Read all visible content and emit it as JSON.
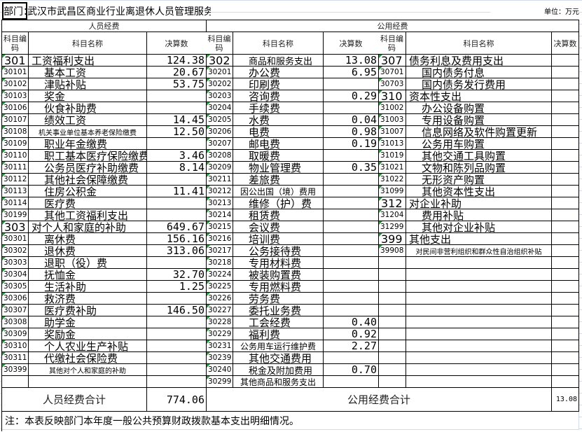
{
  "header": {
    "dept_label": "部门：",
    "dept_name": "武汉市武昌区商业行业离退休人员管理服务中心",
    "unit": "单位：万元"
  },
  "sections": {
    "personnel": "人员经费",
    "public": "公用经费"
  },
  "columns": {
    "code": "科目编码",
    "name": "科目名称",
    "amount": "决算数"
  },
  "personnel": [
    {
      "code": "301",
      "name": "工资福利支出",
      "amount": "124.38"
    },
    {
      "code": "30101",
      "name": "基本工资",
      "amount": "20.67"
    },
    {
      "code": "30102",
      "name": "津贴补贴",
      "amount": "53.75"
    },
    {
      "code": "30103",
      "name": "奖金",
      "amount": ""
    },
    {
      "code": "30106",
      "name": "伙食补助费",
      "amount": ""
    },
    {
      "code": "30107",
      "name": "绩效工资",
      "amount": "14.45"
    },
    {
      "code": "30108",
      "name": "机关事业单位基本养老保险缴费",
      "amount": "12.50"
    },
    {
      "code": "30109",
      "name": "职业年金缴费",
      "amount": ""
    },
    {
      "code": "30110",
      "name": "职工基本医疗保险缴费",
      "amount": "3.46"
    },
    {
      "code": "30111",
      "name": "公务员医疗补助缴费",
      "amount": "8.14"
    },
    {
      "code": "30112",
      "name": "其他社会保障缴费",
      "amount": ""
    },
    {
      "code": "30113",
      "name": "住房公积金",
      "amount": "11.41"
    },
    {
      "code": "30114",
      "name": "医疗费",
      "amount": ""
    },
    {
      "code": "30199",
      "name": "其他工资福利支出",
      "amount": ""
    },
    {
      "code": "303",
      "name": "对个人和家庭的补助",
      "amount": "649.67"
    },
    {
      "code": "30301",
      "name": "离休费",
      "amount": "156.16"
    },
    {
      "code": "30302",
      "name": "退休费",
      "amount": "313.06"
    },
    {
      "code": "30303",
      "name": "退职（役）费",
      "amount": ""
    },
    {
      "code": "30304",
      "name": "抚恤金",
      "amount": "32.70"
    },
    {
      "code": "30305",
      "name": "生活补助",
      "amount": "1.25"
    },
    {
      "code": "30306",
      "name": "救济费",
      "amount": ""
    },
    {
      "code": "30307",
      "name": "医疗费补助",
      "amount": "146.50"
    },
    {
      "code": "30308",
      "name": "助学金",
      "amount": ""
    },
    {
      "code": "30309",
      "name": "奖励金",
      "amount": ""
    },
    {
      "code": "30310",
      "name": "个人农业生产补贴",
      "amount": ""
    },
    {
      "code": "30311",
      "name": "代缴社会保险费",
      "amount": ""
    },
    {
      "code": "30399",
      "name": "其他对个人和家庭的补助",
      "amount": ""
    },
    {
      "code": "",
      "name": "",
      "amount": ""
    }
  ],
  "public_a": [
    {
      "code": "302",
      "name": "商品和服务支出",
      "amount": "13.08"
    },
    {
      "code": "30201",
      "name": "办公费",
      "amount": "6.95"
    },
    {
      "code": "30202",
      "name": "印刷费",
      "amount": ""
    },
    {
      "code": "30203",
      "name": "咨询费",
      "amount": "0.29"
    },
    {
      "code": "30204",
      "name": "手续费",
      "amount": ""
    },
    {
      "code": "30205",
      "name": "水费",
      "amount": "0.04"
    },
    {
      "code": "30206",
      "name": "电费",
      "amount": "0.98"
    },
    {
      "code": "30207",
      "name": "邮电费",
      "amount": "0.19"
    },
    {
      "code": "30208",
      "name": "取暖费",
      "amount": ""
    },
    {
      "code": "30209",
      "name": "物业管理费",
      "amount": "0.35"
    },
    {
      "code": "30211",
      "name": "差旅费",
      "amount": ""
    },
    {
      "code": "30212",
      "name": "因公出国（境）费用",
      "amount": ""
    },
    {
      "code": "30213",
      "name": "维修（护）费",
      "amount": ""
    },
    {
      "code": "30214",
      "name": "租赁费",
      "amount": ""
    },
    {
      "code": "30215",
      "name": "会议费",
      "amount": ""
    },
    {
      "code": "30216",
      "name": "培训费",
      "amount": ""
    },
    {
      "code": "30217",
      "name": "公务接待费",
      "amount": ""
    },
    {
      "code": "30218",
      "name": "专用材料费",
      "amount": ""
    },
    {
      "code": "30224",
      "name": "被装购置费",
      "amount": ""
    },
    {
      "code": "30225",
      "name": "专用燃料费",
      "amount": ""
    },
    {
      "code": "30226",
      "name": "劳务费",
      "amount": ""
    },
    {
      "code": "30227",
      "name": "委托业务费",
      "amount": ""
    },
    {
      "code": "30228",
      "name": "工会经费",
      "amount": "0.40"
    },
    {
      "code": "30229",
      "name": "福利费",
      "amount": "0.92"
    },
    {
      "code": "30231",
      "name": "公务用车运行维护费",
      "amount": "2.27"
    },
    {
      "code": "30239",
      "name": "其他交通费用",
      "amount": ""
    },
    {
      "code": "30240",
      "name": "税金及附加费用",
      "amount": "0.70"
    },
    {
      "code": "30299",
      "name": "其他商品和服务支出",
      "amount": ""
    }
  ],
  "public_b": [
    {
      "code": "307",
      "name": "债务利息及费用支出",
      "amount": ""
    },
    {
      "code": "30701",
      "name": "国内债务付息",
      "amount": ""
    },
    {
      "code": "30703",
      "name": "国内债务发行费用",
      "amount": ""
    },
    {
      "code": "310",
      "name": "资本性支出",
      "amount": ""
    },
    {
      "code": "31002",
      "name": "办公设备购置",
      "amount": ""
    },
    {
      "code": "31003",
      "name": "专用设备购置",
      "amount": ""
    },
    {
      "code": "31007",
      "name": "信息网络及软件购置更新",
      "amount": ""
    },
    {
      "code": "31013",
      "name": "公务用车购置",
      "amount": ""
    },
    {
      "code": "31019",
      "name": "其他交通工具购置",
      "amount": ""
    },
    {
      "code": "31021",
      "name": "文物和陈列品购置",
      "amount": ""
    },
    {
      "code": "31022",
      "name": "无形资产购置",
      "amount": ""
    },
    {
      "code": "31099",
      "name": "其他资本性支出",
      "amount": ""
    },
    {
      "code": "312",
      "name": "对企业补助",
      "amount": ""
    },
    {
      "code": "31204",
      "name": "费用补贴",
      "amount": ""
    },
    {
      "code": "31299",
      "name": "其他对企业补贴",
      "amount": ""
    },
    {
      "code": "399",
      "name": "其他支出",
      "amount": ""
    },
    {
      "code": "39908",
      "name": "对民间非营利组织和群众性自治组织补贴",
      "amount": ""
    },
    {
      "code": "",
      "name": "",
      "amount": ""
    },
    {
      "code": "",
      "name": "",
      "amount": ""
    },
    {
      "code": "",
      "name": "",
      "amount": ""
    },
    {
      "code": "",
      "name": "",
      "amount": ""
    },
    {
      "code": "",
      "name": "",
      "amount": ""
    },
    {
      "code": "",
      "name": "",
      "amount": ""
    },
    {
      "code": "",
      "name": "",
      "amount": ""
    },
    {
      "code": "",
      "name": "",
      "amount": ""
    },
    {
      "code": "",
      "name": "",
      "amount": ""
    },
    {
      "code": "",
      "name": "",
      "amount": ""
    },
    {
      "code": "",
      "name": "",
      "amount": ""
    }
  ],
  "totals": {
    "personnel_label": "人员经费合计",
    "personnel_value": "774.06",
    "public_label": "公用经费合计",
    "public_value": "13.08"
  },
  "note": "注：本表反映部门本年度一般公共预算财政拨款基本支出明细情况。",
  "colors": {
    "comment_marker": "#1f9a2e",
    "grid": "#d4dbe8"
  }
}
